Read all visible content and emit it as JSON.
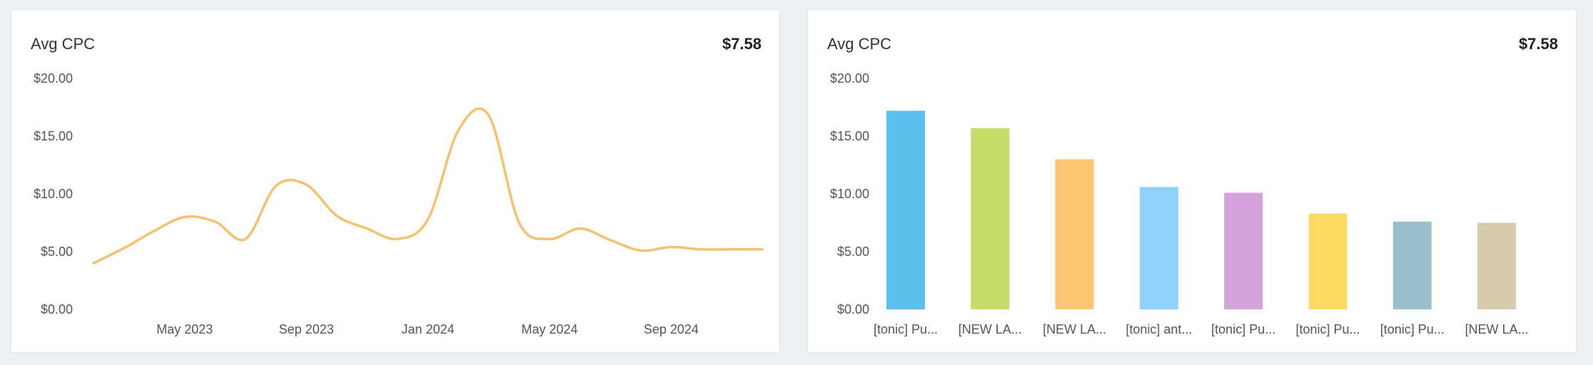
{
  "cards": [
    {
      "title": "Avg CPC",
      "value": "$7.58",
      "chart_data": {
        "type": "line",
        "title": "Avg CPC",
        "xlabel": "",
        "ylabel": "",
        "ylim": [
          0,
          20
        ],
        "y_ticks": [
          "$0.00",
          "$5.00",
          "$10.00",
          "$15.00",
          "$20.00"
        ],
        "x_tick_labels": [
          "May 2023",
          "Sep 2023",
          "Jan 2024",
          "May 2024",
          "Sep 2024"
        ],
        "x": [
          "2023-02",
          "2023-03",
          "2023-04",
          "2023-05",
          "2023-06",
          "2023-07",
          "2023-08",
          "2023-09",
          "2023-10",
          "2023-11",
          "2023-12",
          "2024-01",
          "2024-02",
          "2024-03",
          "2024-04",
          "2024-05",
          "2024-06",
          "2024-07",
          "2024-08",
          "2024-09",
          "2024-10",
          "2024-11",
          "2024-12"
        ],
        "series": [
          {
            "color": "#f5c06f",
            "values": [
              4.0,
              5.3,
              6.8,
              8.0,
              7.6,
              6.1,
              10.7,
              10.8,
              8.1,
              7.0,
              6.1,
              7.8,
              15.5,
              16.8,
              7.5,
              6.1,
              7.0,
              6.0,
              5.1,
              5.4,
              5.2,
              5.2,
              5.2
            ]
          }
        ],
        "grid": false
      }
    },
    {
      "title": "Avg CPC",
      "value": "$7.58",
      "chart_data": {
        "type": "bar",
        "title": "Avg CPC",
        "xlabel": "",
        "ylabel": "",
        "ylim": [
          0,
          20
        ],
        "y_ticks": [
          "$0.00",
          "$5.00",
          "$10.00",
          "$15.00",
          "$20.00"
        ],
        "categories": [
          "[tonic] Pu...",
          "[NEW LA...",
          "[NEW LA...",
          "[tonic] ant...",
          "[tonic] Pu...",
          "[tonic] Pu...",
          "[tonic] Pu...",
          "[NEW LA..."
        ],
        "values": [
          17.2,
          15.7,
          13.0,
          10.6,
          10.1,
          8.3,
          7.6,
          7.5
        ],
        "colors": [
          "#5bc0eb",
          "#c5dd66",
          "#fdc674",
          "#8fd3fb",
          "#d4a3dc",
          "#fddb60",
          "#98bfcc",
          "#d6cbad"
        ],
        "grid": false
      }
    }
  ]
}
